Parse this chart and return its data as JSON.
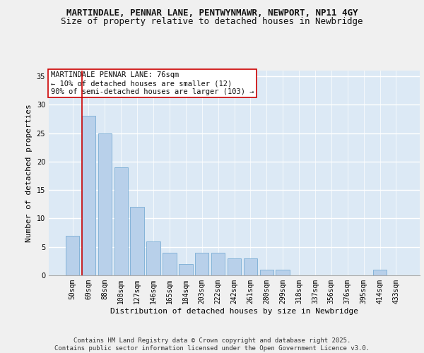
{
  "title_line1": "MARTINDALE, PENNAR LANE, PENTWYNMAWR, NEWPORT, NP11 4GY",
  "title_line2": "Size of property relative to detached houses in Newbridge",
  "xlabel": "Distribution of detached houses by size in Newbridge",
  "ylabel": "Number of detached properties",
  "categories": [
    "50sqm",
    "69sqm",
    "88sqm",
    "108sqm",
    "127sqm",
    "146sqm",
    "165sqm",
    "184sqm",
    "203sqm",
    "222sqm",
    "242sqm",
    "261sqm",
    "280sqm",
    "299sqm",
    "318sqm",
    "337sqm",
    "356sqm",
    "376sqm",
    "395sqm",
    "414sqm",
    "433sqm"
  ],
  "values": [
    7,
    28,
    25,
    19,
    12,
    6,
    4,
    2,
    4,
    4,
    3,
    3,
    1,
    1,
    0,
    0,
    0,
    0,
    0,
    1,
    0
  ],
  "bar_color": "#b8d0ea",
  "bar_edge_color": "#7aadd4",
  "vline_color": "#cc0000",
  "vline_pos": 0.575,
  "annotation_title": "MARTINDALE PENNAR LANE: 76sqm",
  "annotation_line2": "← 10% of detached houses are smaller (12)",
  "annotation_line3": "90% of semi-detached houses are larger (103) →",
  "annotation_box_color": "#ffffff",
  "annotation_box_edge_color": "#cc0000",
  "ylim": [
    0,
    36
  ],
  "yticks": [
    0,
    5,
    10,
    15,
    20,
    25,
    30,
    35
  ],
  "plot_bg_color": "#dce9f5",
  "fig_bg_color": "#f0f0f0",
  "grid_color": "#ffffff",
  "footer": "Contains HM Land Registry data © Crown copyright and database right 2025.\nContains public sector information licensed under the Open Government Licence v3.0.",
  "title_fontsize": 9,
  "subtitle_fontsize": 9,
  "axis_label_fontsize": 8,
  "tick_fontsize": 7,
  "annotation_fontsize": 7.5,
  "footer_fontsize": 6.5
}
